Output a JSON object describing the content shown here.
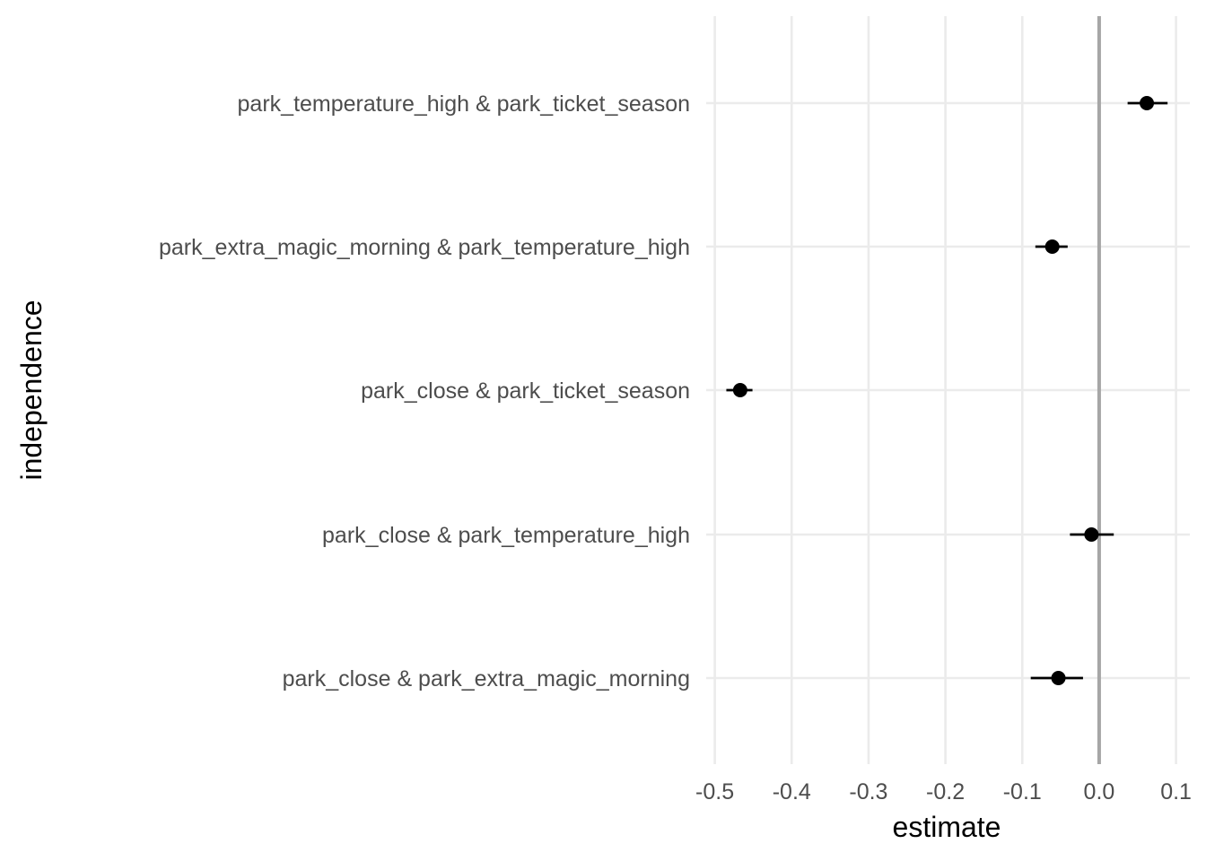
{
  "chart_data": {
    "type": "scatter",
    "subtype": "point-range",
    "xlabel": "estimate",
    "ylabel": "independence",
    "xlim": [
      -0.5,
      0.1
    ],
    "x_ticks": [
      "-0.5",
      "-0.4",
      "-0.3",
      "-0.2",
      "-0.1",
      "0.0",
      "0.1"
    ],
    "x_tick_values": [
      -0.5,
      -0.4,
      -0.3,
      -0.2,
      -0.1,
      0.0,
      0.1
    ],
    "reference_line_x": 0.0,
    "grid": true,
    "categories": [
      "park_temperature_high & park_ticket_season",
      "park_extra_magic_morning & park_temperature_high",
      "park_close & park_ticket_season",
      "park_close & park_temperature_high",
      "park_close & park_extra_magic_morning"
    ],
    "points": [
      {
        "estimate": 0.062,
        "low": 0.037,
        "high": 0.089
      },
      {
        "estimate": -0.061,
        "low": -0.083,
        "high": -0.041
      },
      {
        "estimate": -0.467,
        "low": -0.485,
        "high": -0.451
      },
      {
        "estimate": -0.01,
        "low": -0.038,
        "high": 0.019
      },
      {
        "estimate": -0.053,
        "low": -0.089,
        "high": -0.021
      }
    ],
    "colors": {
      "point": "#000000",
      "grid": "#ebebeb",
      "reference_line": "#a6a6a6",
      "tick_text": "#4d4d4d"
    }
  }
}
